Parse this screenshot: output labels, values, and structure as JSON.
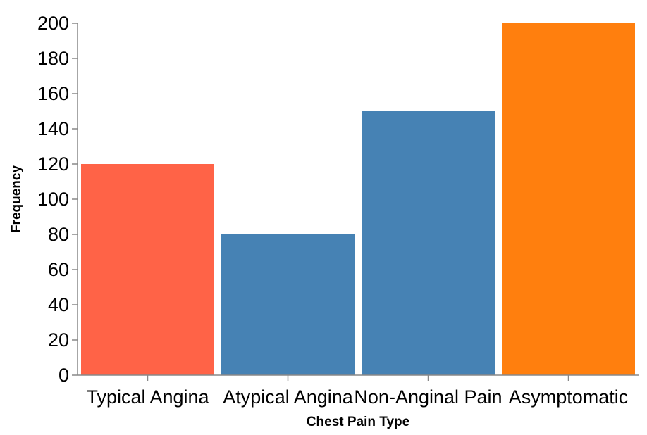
{
  "chart_data": {
    "type": "bar",
    "categories": [
      "Typical Angina",
      "Atypical Angina",
      "Non-Anginal Pain",
      "Asymptomatic"
    ],
    "values": [
      120,
      80,
      150,
      200
    ],
    "colors": [
      "#ff6347",
      "#4682b4",
      "#4682b4",
      "#ff7f0e"
    ],
    "xlabel": "Chest Pain Type",
    "ylabel": "Frequency",
    "ylim": [
      0,
      200
    ],
    "yticks": [
      0,
      20,
      40,
      60,
      80,
      100,
      120,
      140,
      160,
      180,
      200
    ],
    "grid": false,
    "legend": "none"
  }
}
